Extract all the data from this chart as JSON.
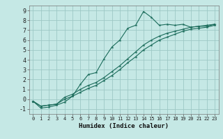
{
  "xlabel": "Humidex (Indice chaleur)",
  "ylabel": "",
  "bg_color": "#c5e8e5",
  "grid_color": "#9dc8c5",
  "line_color": "#1a6b5a",
  "xlim": [
    -0.5,
    23.5
  ],
  "ylim": [
    -1.5,
    9.5
  ],
  "xticks": [
    0,
    1,
    2,
    3,
    4,
    5,
    6,
    7,
    8,
    9,
    10,
    11,
    12,
    13,
    14,
    15,
    16,
    17,
    18,
    19,
    20,
    21,
    22,
    23
  ],
  "yticks": [
    -1,
    0,
    1,
    2,
    3,
    4,
    5,
    6,
    7,
    8,
    9
  ],
  "line1_x": [
    0,
    1,
    2,
    3,
    4,
    5,
    6,
    7,
    8,
    9,
    10,
    11,
    12,
    13,
    14,
    15,
    16,
    17,
    18,
    19,
    20,
    21,
    22,
    23
  ],
  "line1_y": [
    -0.2,
    -0.9,
    -0.8,
    -0.6,
    -0.3,
    0.3,
    1.5,
    2.5,
    2.7,
    4.1,
    5.3,
    6.0,
    7.2,
    7.5,
    8.9,
    8.3,
    7.5,
    7.6,
    7.5,
    7.6,
    7.3,
    7.4,
    7.4,
    7.6
  ],
  "line2_x": [
    0,
    1,
    2,
    3,
    4,
    5,
    6,
    7,
    8,
    9,
    10,
    11,
    12,
    13,
    14,
    15,
    16,
    17,
    18,
    19,
    20,
    21,
    22,
    23
  ],
  "line2_y": [
    -0.2,
    -0.7,
    -0.6,
    -0.5,
    0.2,
    0.5,
    1.0,
    1.4,
    1.7,
    2.2,
    2.8,
    3.4,
    4.1,
    4.8,
    5.5,
    6.0,
    6.4,
    6.7,
    6.9,
    7.1,
    7.3,
    7.4,
    7.5,
    7.6
  ],
  "line3_x": [
    0,
    1,
    2,
    3,
    4,
    5,
    6,
    7,
    8,
    9,
    10,
    11,
    12,
    13,
    14,
    15,
    16,
    17,
    18,
    19,
    20,
    21,
    22,
    23
  ],
  "line3_y": [
    -0.2,
    -0.7,
    -0.6,
    -0.5,
    0.0,
    0.3,
    0.7,
    1.1,
    1.4,
    1.9,
    2.4,
    3.0,
    3.7,
    4.3,
    5.0,
    5.5,
    6.0,
    6.3,
    6.6,
    6.9,
    7.1,
    7.2,
    7.3,
    7.5
  ]
}
